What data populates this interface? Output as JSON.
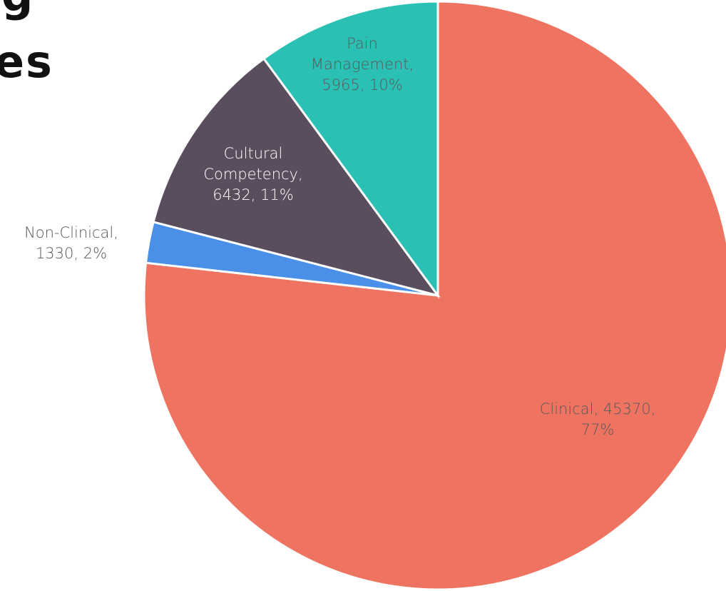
{
  "chart_data": {
    "type": "pie",
    "title_fragments": [
      "g",
      "es"
    ],
    "categories": [
      "Clinical",
      "Non-Clinical",
      "Cultural Competency",
      "Pain Management"
    ],
    "values": [
      45370,
      1330,
      6432,
      5965
    ],
    "value_labels": [
      [
        "Clinical, 45370,",
        "77%"
      ],
      [
        "Non-Clinical,",
        "1330, 2%"
      ],
      [
        "Cultural",
        "Competency,",
        "6432, 11%"
      ],
      [
        "Pain",
        "Management,",
        "5965, 10%"
      ]
    ],
    "colors": [
      "#ee7461",
      "#4a8fe8",
      "#5a4e5e",
      "#2bc0b4"
    ],
    "label_colors": [
      "#595959",
      "#595959",
      "#ffffff",
      "#595959"
    ],
    "start_angle": 0,
    "direction": "clockwise"
  }
}
